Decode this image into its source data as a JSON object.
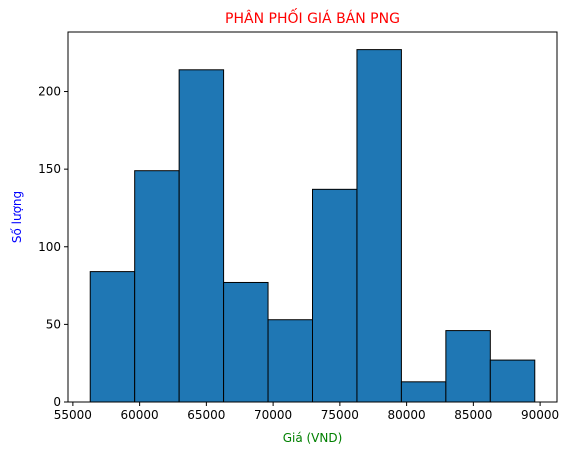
{
  "chart_data": {
    "type": "bar",
    "title": "PHÂN PHỐI GIÁ BÁN PNG",
    "xlabel": "Giá (VND)",
    "ylabel": "Số lượng",
    "bins": [
      {
        "start": 56300,
        "end": 59630,
        "count": 84
      },
      {
        "start": 59630,
        "end": 62960,
        "count": 149
      },
      {
        "start": 62960,
        "end": 66290,
        "count": 214
      },
      {
        "start": 66290,
        "end": 69620,
        "count": 77
      },
      {
        "start": 69620,
        "end": 72950,
        "count": 53
      },
      {
        "start": 72950,
        "end": 76280,
        "count": 137
      },
      {
        "start": 76280,
        "end": 79610,
        "count": 227
      },
      {
        "start": 79610,
        "end": 82940,
        "count": 13
      },
      {
        "start": 82940,
        "end": 86270,
        "count": 46
      },
      {
        "start": 86270,
        "end": 89600,
        "count": 27
      }
    ],
    "xlim": [
      54635,
      91265
    ],
    "ylim": [
      0,
      238.35
    ],
    "xticks": [
      55000,
      60000,
      65000,
      70000,
      75000,
      80000,
      85000,
      90000
    ],
    "xtick_labels": [
      "55000",
      "60000",
      "65000",
      "70000",
      "75000",
      "80000",
      "85000",
      "90000"
    ],
    "yticks": [
      0,
      50,
      100,
      150,
      200
    ],
    "ytick_labels": [
      "0",
      "50",
      "100",
      "150",
      "200"
    ],
    "grid": false,
    "colors": {
      "bar_fill": "#1f77b4",
      "bar_edge": "#000000",
      "title": "#ff0000",
      "xlabel": "#008000",
      "ylabel": "#0000ff"
    }
  }
}
